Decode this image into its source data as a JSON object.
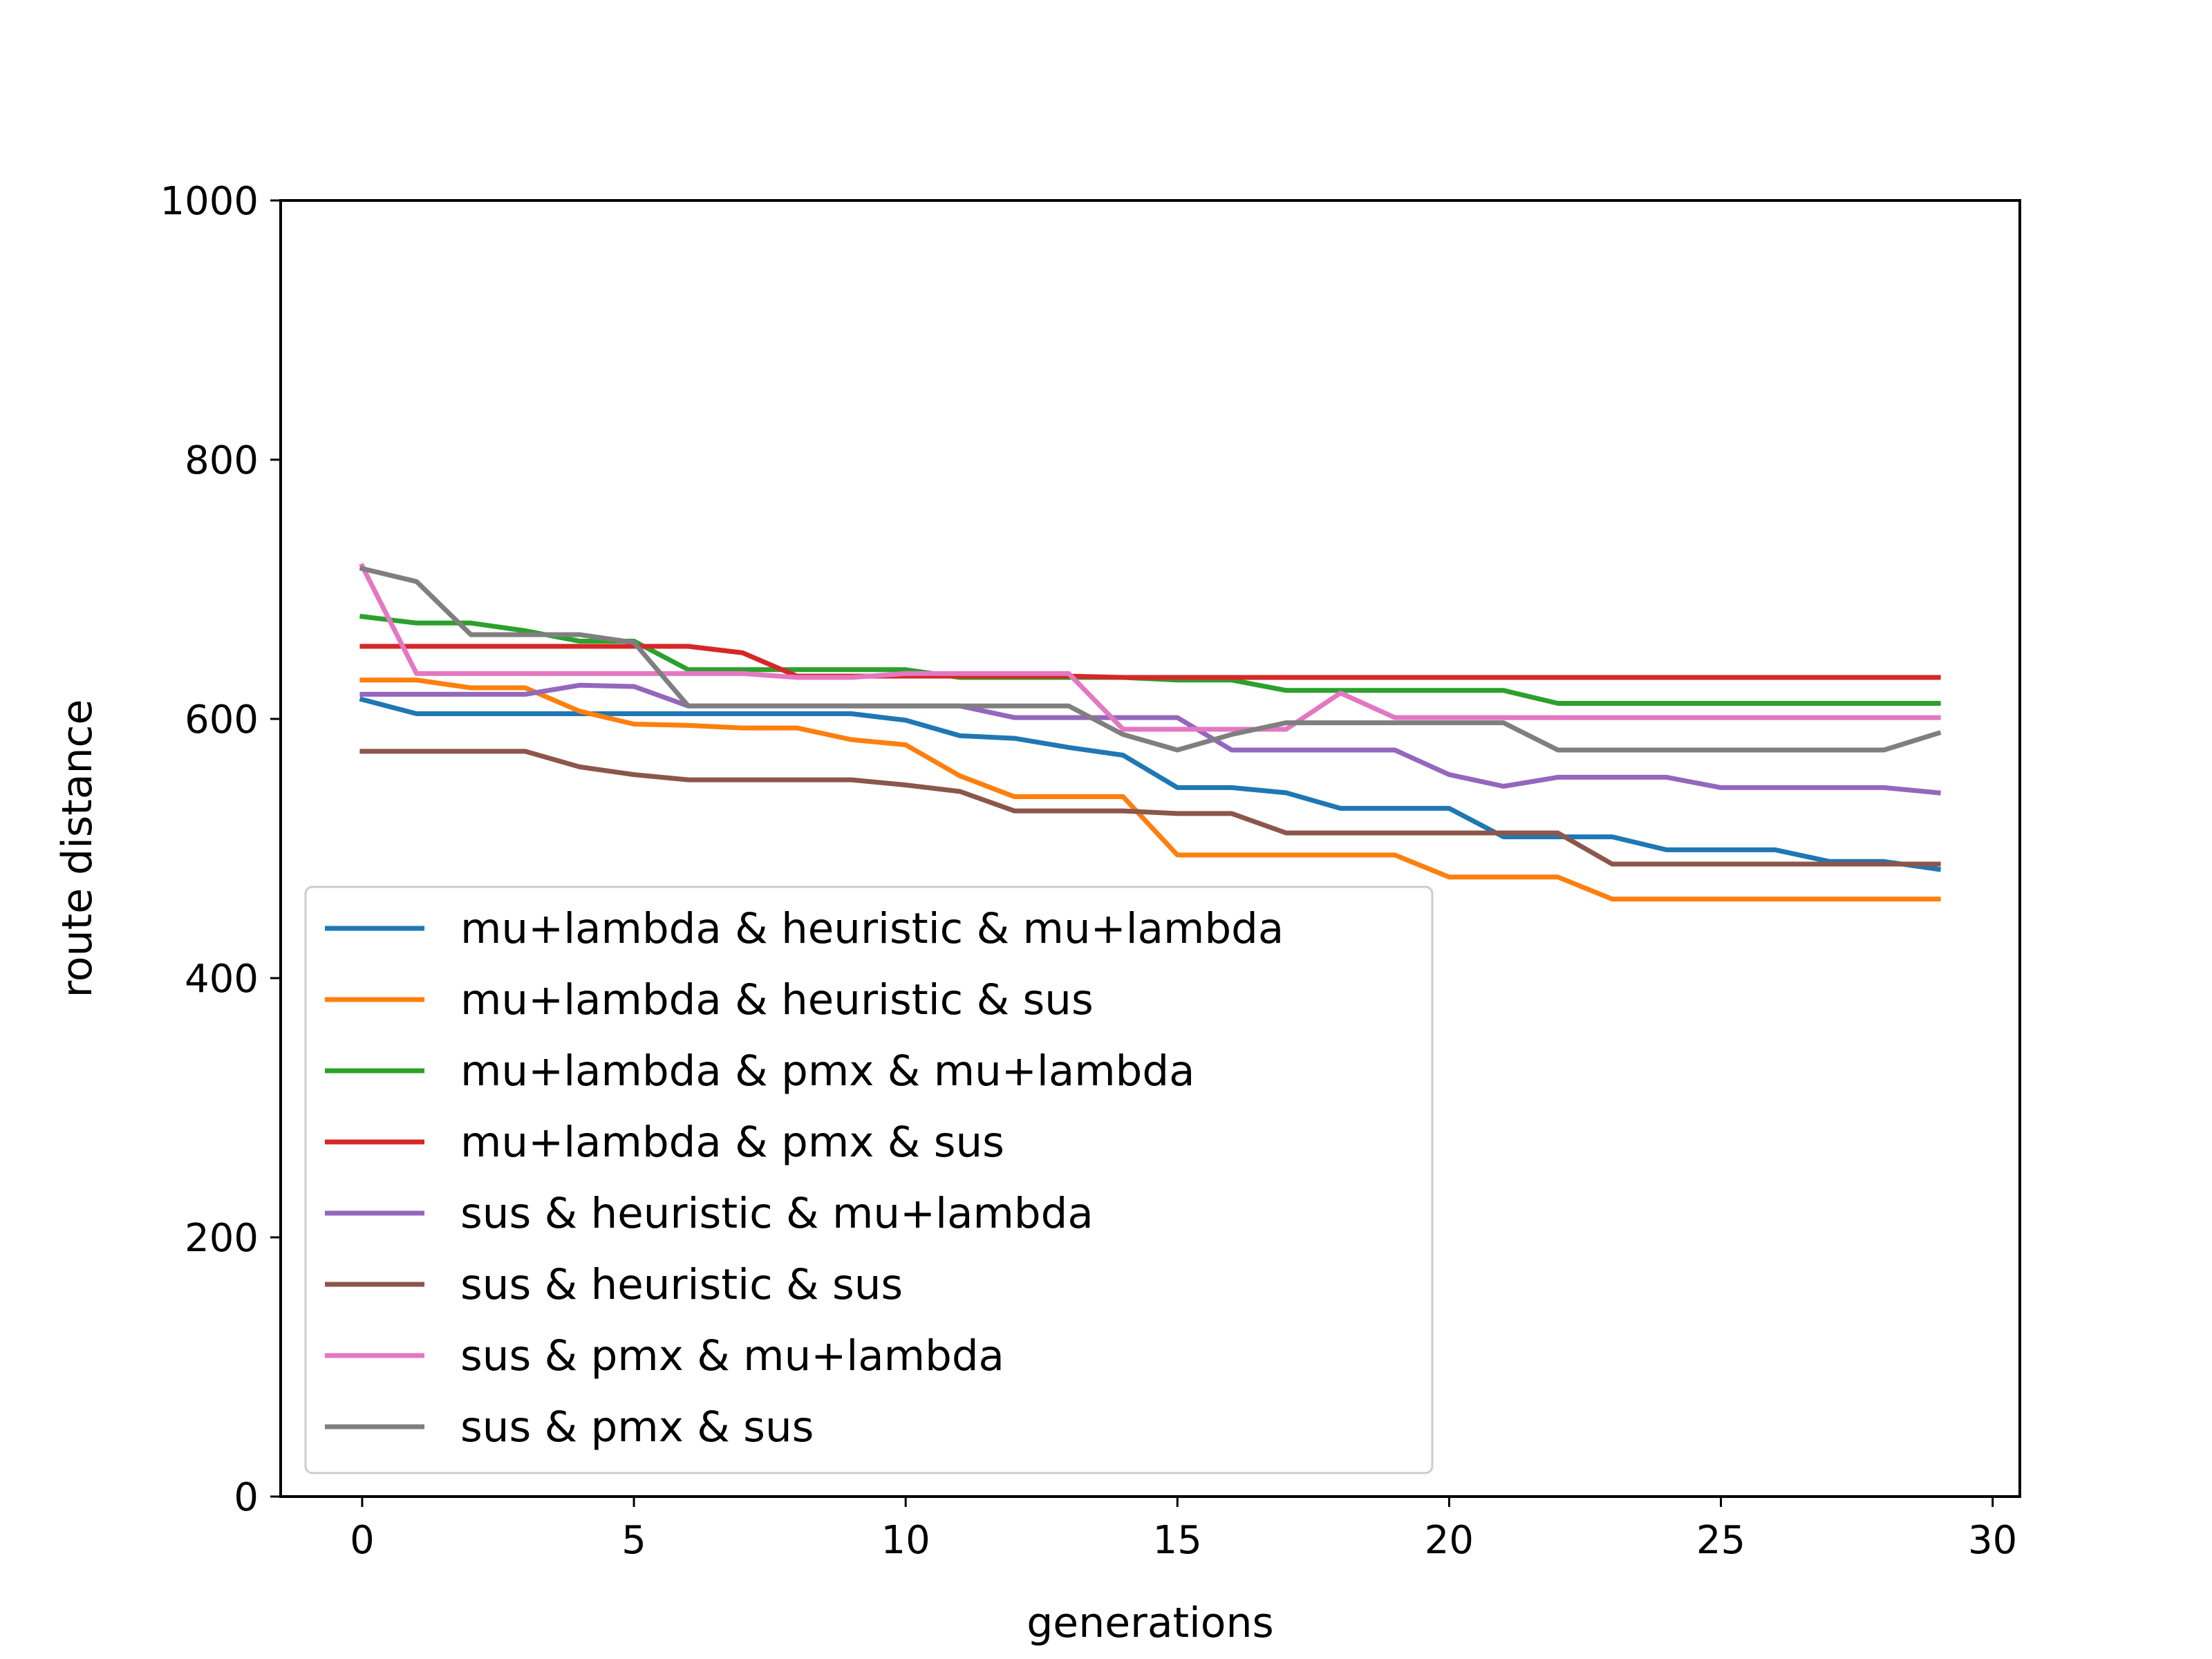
{
  "chart_data": {
    "type": "line",
    "title": "",
    "xlabel": "generations",
    "ylabel": "route distance",
    "xlim": [
      -1.5,
      30.5
    ],
    "ylim": [
      0,
      1000
    ],
    "xticks": [
      0,
      5,
      10,
      15,
      20,
      25,
      30
    ],
    "yticks": [
      0,
      200,
      400,
      600,
      800,
      1000
    ],
    "grid": false,
    "legend_position": "lower-left",
    "x": [
      0,
      1,
      2,
      3,
      4,
      5,
      6,
      7,
      8,
      9,
      10,
      11,
      12,
      13,
      14,
      15,
      16,
      17,
      18,
      19,
      20,
      21,
      22,
      23,
      24,
      25,
      26,
      27,
      28,
      29
    ],
    "series": [
      {
        "name": "mu+lambda & heuristic & mu+lambda",
        "color": "#1f77b4",
        "values": [
          615,
          604,
          604,
          604,
          604,
          604,
          604,
          604,
          604,
          604,
          599,
          587,
          585,
          578,
          572,
          547,
          547,
          543,
          531,
          531,
          531,
          509,
          509,
          509,
          499,
          499,
          499,
          490,
          490,
          484
        ]
      },
      {
        "name": "mu+lambda & heuristic & sus",
        "color": "#ff7f0e",
        "values": [
          630,
          630,
          624,
          624,
          606,
          596,
          595,
          593,
          593,
          584,
          580,
          556,
          540,
          540,
          540,
          495,
          495,
          495,
          495,
          495,
          478,
          478,
          478,
          461,
          461,
          461,
          461,
          461,
          461,
          461
        ]
      },
      {
        "name": "mu+lambda & pmx & mu+lambda",
        "color": "#2ca02c",
        "values": [
          679,
          674,
          674,
          668,
          660,
          660,
          638,
          638,
          638,
          638,
          638,
          632,
          632,
          632,
          632,
          630,
          630,
          622,
          622,
          622,
          622,
          622,
          612,
          612,
          612,
          612,
          612,
          612,
          612,
          612
        ]
      },
      {
        "name": "mu+lambda & pmx & sus",
        "color": "#d62728",
        "values": [
          656,
          656,
          656,
          656,
          656,
          656,
          656,
          651,
          633,
          633,
          633,
          633,
          633,
          633,
          632,
          632,
          632,
          632,
          632,
          632,
          632,
          632,
          632,
          632,
          632,
          632,
          632,
          632,
          632,
          632
        ]
      },
      {
        "name": "sus & heuristic & mu+lambda",
        "color": "#9467bd",
        "values": [
          619,
          619,
          619,
          619,
          626,
          625,
          610,
          610,
          610,
          610,
          610,
          610,
          601,
          601,
          601,
          601,
          576,
          576,
          576,
          576,
          557,
          548,
          555,
          555,
          555,
          547,
          547,
          547,
          547,
          543
        ]
      },
      {
        "name": "sus & heuristic & sus",
        "color": "#8c564b",
        "values": [
          575,
          575,
          575,
          575,
          563,
          557,
          553,
          553,
          553,
          553,
          549,
          544,
          529,
          529,
          529,
          527,
          527,
          512,
          512,
          512,
          512,
          512,
          512,
          488,
          488,
          488,
          488,
          488,
          488,
          488
        ]
      },
      {
        "name": "sus & pmx & mu+lambda",
        "color": "#e377c2",
        "values": [
          718,
          635,
          635,
          635,
          635,
          635,
          635,
          635,
          632,
          632,
          635,
          635,
          635,
          635,
          592,
          592,
          592,
          592,
          620,
          601,
          601,
          601,
          601,
          601,
          601,
          601,
          601,
          601,
          601,
          601
        ]
      },
      {
        "name": "sus & pmx & sus",
        "color": "#7f7f7f",
        "values": [
          716,
          706,
          665,
          665,
          665,
          659,
          610,
          610,
          610,
          610,
          610,
          610,
          610,
          610,
          588,
          576,
          588,
          597,
          597,
          597,
          597,
          597,
          576,
          576,
          576,
          576,
          576,
          576,
          576,
          589
        ]
      }
    ]
  }
}
